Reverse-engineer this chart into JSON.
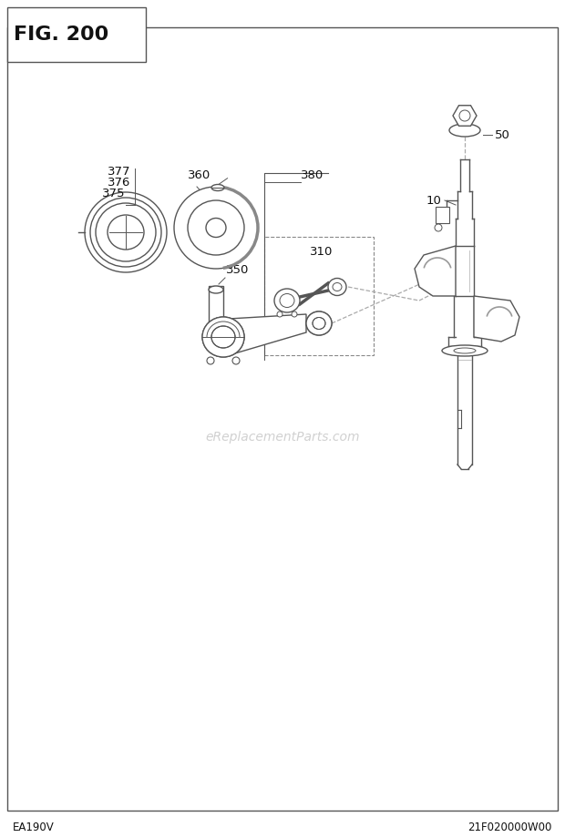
{
  "title": "FIG. 200",
  "footer_left": "EA190V",
  "footer_right": "21F020000W00",
  "watermark": "eReplacementParts.com",
  "bg_color": "#ffffff",
  "border_color": "#555555",
  "lc": "#555555",
  "lw": 1.0
}
